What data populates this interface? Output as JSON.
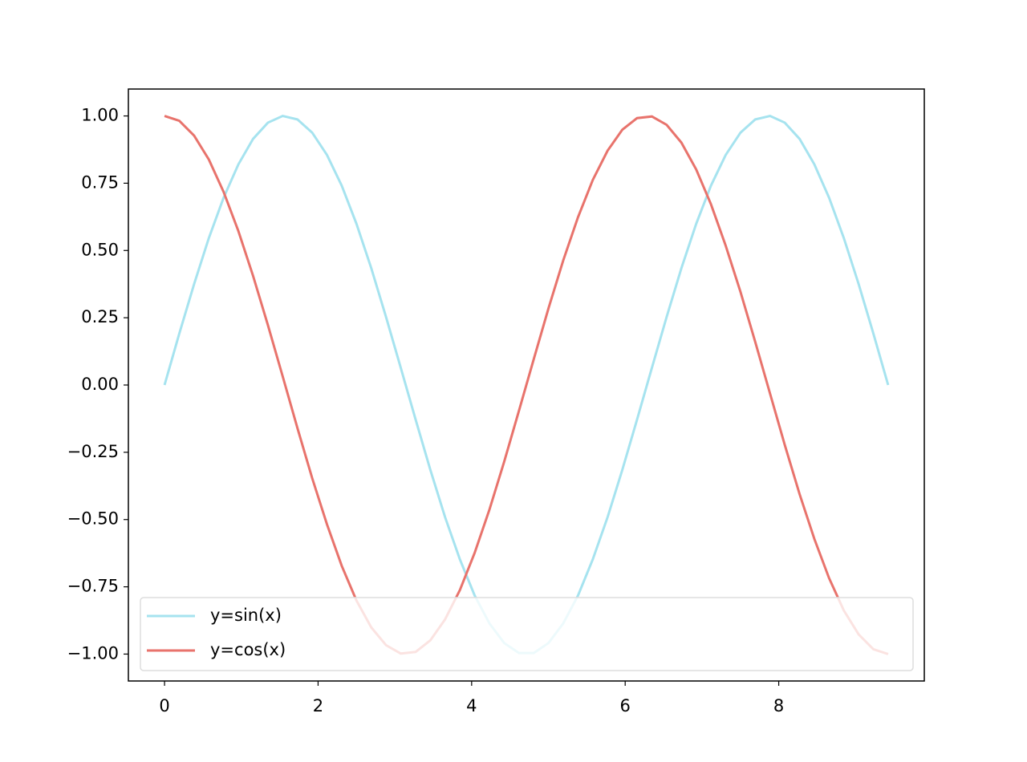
{
  "chart_data": {
    "type": "line",
    "x": [
      0,
      0.192,
      0.385,
      0.577,
      0.769,
      0.962,
      1.154,
      1.346,
      1.539,
      1.731,
      1.923,
      2.116,
      2.308,
      2.5,
      2.693,
      2.885,
      3.077,
      3.27,
      3.462,
      3.654,
      3.847,
      4.039,
      4.232,
      4.424,
      4.616,
      4.809,
      5.001,
      5.193,
      5.386,
      5.578,
      5.771,
      5.963,
      6.155,
      6.348,
      6.54,
      6.732,
      6.925,
      7.117,
      7.309,
      7.502,
      7.694,
      7.887,
      8.079,
      8.271,
      8.464,
      8.656,
      8.848,
      9.041,
      9.233,
      9.425
    ],
    "series": [
      {
        "name": "y=sin(x)",
        "color": "#a6e3ef",
        "values": [
          0,
          0.191,
          0.375,
          0.546,
          0.696,
          0.82,
          0.915,
          0.975,
          1.0,
          0.987,
          0.938,
          0.855,
          0.741,
          0.599,
          0.434,
          0.253,
          0.064,
          -0.128,
          -0.315,
          -0.491,
          -0.648,
          -0.782,
          -0.886,
          -0.959,
          -0.996,
          -0.996,
          -0.959,
          -0.886,
          -0.782,
          -0.648,
          -0.491,
          -0.315,
          -0.128,
          0.064,
          0.253,
          0.434,
          0.599,
          0.741,
          0.855,
          0.938,
          0.987,
          1.0,
          0.975,
          0.915,
          0.82,
          0.696,
          0.546,
          0.375,
          0.191,
          0
        ]
      },
      {
        "name": "y=cos(x)",
        "color": "#e8736c",
        "values": [
          1,
          0.982,
          0.927,
          0.838,
          0.718,
          0.572,
          0.405,
          0.223,
          0.032,
          -0.16,
          -0.346,
          -0.518,
          -0.672,
          -0.801,
          -0.901,
          -0.967,
          -0.998,
          -0.992,
          -0.949,
          -0.871,
          -0.762,
          -0.624,
          -0.463,
          -0.285,
          -0.096,
          0.096,
          0.285,
          0.463,
          0.624,
          0.762,
          0.871,
          0.949,
          0.992,
          0.998,
          0.967,
          0.901,
          0.801,
          0.672,
          0.518,
          0.346,
          0.16,
          -0.032,
          -0.223,
          -0.405,
          -0.572,
          -0.718,
          -0.838,
          -0.927,
          -0.982,
          -1
        ]
      }
    ],
    "xlim": [
      -0.471,
      9.896
    ],
    "ylim": [
      -1.1,
      1.1
    ],
    "xticks": [
      0,
      2,
      4,
      6,
      8
    ],
    "yticks": [
      {
        "value": -1,
        "label": "−1.00"
      },
      {
        "value": -0.75,
        "label": "−0.75"
      },
      {
        "value": -0.5,
        "label": "−0.50"
      },
      {
        "value": -0.25,
        "label": "−0.25"
      },
      {
        "value": 0,
        "label": "0.00"
      },
      {
        "value": 0.25,
        "label": "0.25"
      },
      {
        "value": 0.5,
        "label": "0.50"
      },
      {
        "value": 0.75,
        "label": "0.75"
      },
      {
        "value": 1,
        "label": "1.00"
      }
    ],
    "legend": "lower center",
    "grid": false
  }
}
